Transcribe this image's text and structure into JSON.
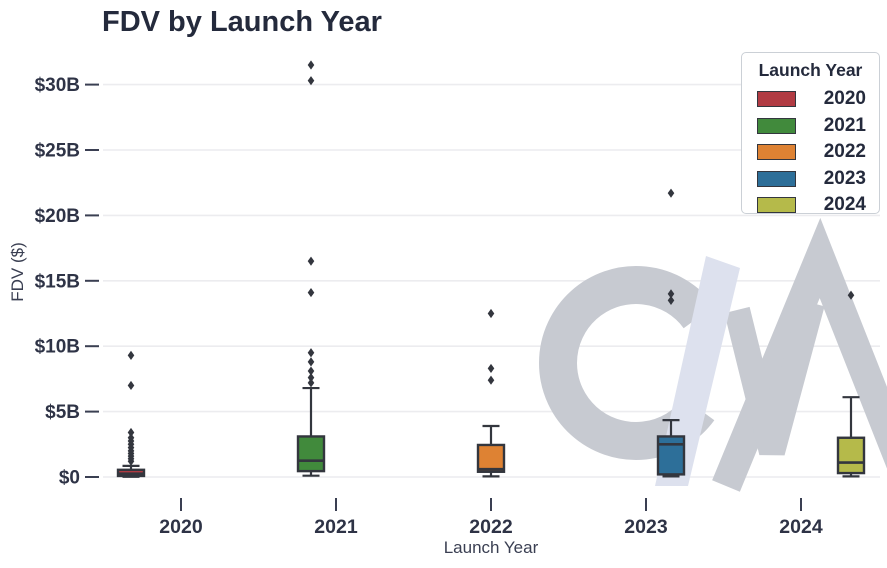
{
  "title": "FDV by Launch Year",
  "watermark": {
    "text": "C/M",
    "letters": [
      "C",
      "/",
      "M"
    ],
    "gray": "#c7cad1",
    "accent": "#dde1ee"
  },
  "colors": {
    "text_dark": "#242a3c",
    "tick_text": "#2e3346",
    "axis_label_text": "#3a3f52",
    "gridline": "#ececef",
    "box_edge": "#33363e",
    "legend_border": "#cbd0d6"
  },
  "chart_data": {
    "type": "box",
    "title": "FDV by Launch Year",
    "xlabel": "Launch Year",
    "ylabel": "FDV ($)",
    "unit": "billions of USD",
    "grid": true,
    "ylim": [
      0,
      32.3
    ],
    "y_ticks": [
      {
        "value": 0,
        "label": "$0"
      },
      {
        "value": 5,
        "label": "$5B"
      },
      {
        "value": 10,
        "label": "$10B"
      },
      {
        "value": 15,
        "label": "$15B"
      },
      {
        "value": 20,
        "label": "$20B"
      },
      {
        "value": 25,
        "label": "$25B"
      },
      {
        "value": 30,
        "label": "$30B"
      }
    ],
    "categories": [
      "2020",
      "2021",
      "2022",
      "2023",
      "2024"
    ],
    "legend": {
      "title": "Launch Year",
      "position": "upper right"
    },
    "series": [
      {
        "name": "2020",
        "color": "#b13b43",
        "whisker_low": 0.02,
        "q1": 0.08,
        "median": 0.25,
        "q3": 0.55,
        "whisker_high": 0.85,
        "outliers": [
          1.2,
          1.4,
          1.6,
          1.8,
          2.0,
          2.25,
          2.5,
          2.75,
          3.0,
          3.4,
          7.0,
          9.3
        ]
      },
      {
        "name": "2021",
        "color": "#418a3c",
        "whisker_low": 0.1,
        "q1": 0.45,
        "median": 1.25,
        "q3": 3.1,
        "whisker_high": 6.8,
        "outliers": [
          7.2,
          7.6,
          8.1,
          8.8,
          9.5,
          14.1,
          16.5,
          30.3,
          31.5
        ]
      },
      {
        "name": "2022",
        "color": "#de8233",
        "whisker_low": 0.05,
        "q1": 0.4,
        "median": 0.6,
        "q3": 2.45,
        "whisker_high": 3.9,
        "outliers": [
          7.4,
          8.3,
          12.5
        ]
      },
      {
        "name": "2023",
        "color": "#2d6f99",
        "whisker_low": 0.05,
        "q1": 0.2,
        "median": 2.5,
        "q3": 3.1,
        "whisker_high": 4.35,
        "outliers": [
          13.5,
          14.0,
          21.7
        ]
      },
      {
        "name": "2024",
        "color": "#b5ba4a",
        "whisker_low": 0.05,
        "q1": 0.3,
        "median": 1.1,
        "q3": 3.0,
        "whisker_high": 6.1,
        "outliers": [
          13.9
        ]
      }
    ]
  }
}
